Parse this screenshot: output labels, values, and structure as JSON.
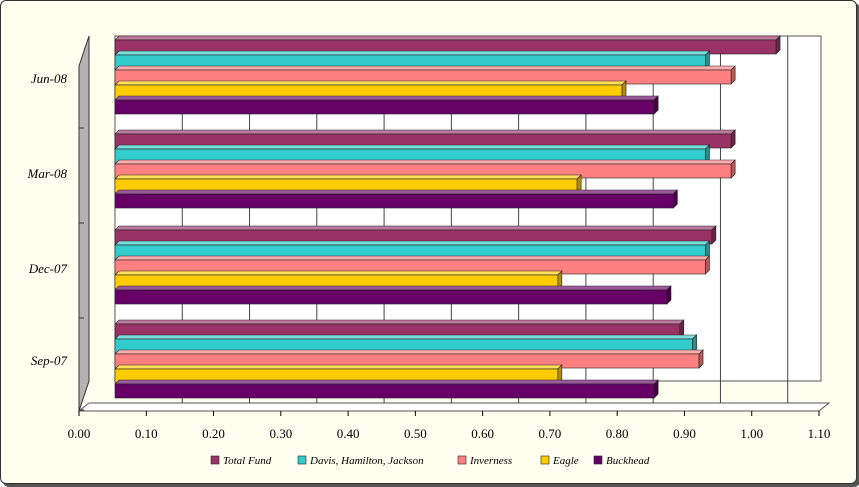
{
  "chart_data": {
    "type": "bar",
    "orientation": "horizontal",
    "three_d": true,
    "categories": [
      "Sep-07",
      "Dec-07",
      "Mar-08",
      "Jun-08"
    ],
    "series": [
      {
        "name": "Total Fund",
        "color": "#993366",
        "values": [
          0.88,
          0.93,
          0.96,
          1.03
        ]
      },
      {
        "name": "Davis, Hamilton, Jackson",
        "color": "#33cccc",
        "values": [
          0.9,
          0.92,
          0.92,
          0.92
        ]
      },
      {
        "name": "Inverness",
        "color": "#ff8080",
        "values": [
          0.91,
          0.92,
          0.96,
          0.96
        ]
      },
      {
        "name": "Eagle",
        "color": "#ffcc00",
        "values": [
          0.69,
          0.69,
          0.72,
          0.79
        ]
      },
      {
        "name": "Buckhead",
        "color": "#660066",
        "values": [
          0.84,
          0.86,
          0.87,
          0.84
        ]
      }
    ],
    "xlim": [
      0,
      1.1
    ],
    "x_ticks": [
      "0.00",
      "0.10",
      "0.20",
      "0.30",
      "0.40",
      "0.50",
      "0.60",
      "0.70",
      "0.80",
      "0.90",
      "1.00",
      "1.10"
    ],
    "grid": true,
    "legend_position": "bottom",
    "title": "",
    "xlabel": "",
    "ylabel": ""
  }
}
